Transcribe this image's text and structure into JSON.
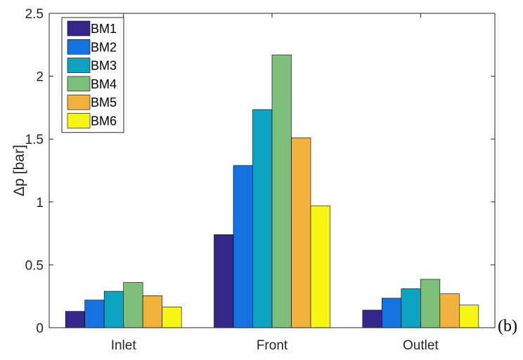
{
  "chart_data": {
    "type": "bar",
    "categories": [
      "Inlet",
      "Front",
      "Outlet"
    ],
    "series": [
      {
        "name": "BM1",
        "values": [
          0.13,
          0.74,
          0.14
        ],
        "color": "#33288a"
      },
      {
        "name": "BM2",
        "values": [
          0.22,
          1.29,
          0.235
        ],
        "color": "#1473e0"
      },
      {
        "name": "BM3",
        "values": [
          0.29,
          1.735,
          0.31
        ],
        "color": "#0fa3c2"
      },
      {
        "name": "BM4",
        "values": [
          0.36,
          2.17,
          0.385
        ],
        "color": "#7dbf7a"
      },
      {
        "name": "BM5",
        "values": [
          0.255,
          1.51,
          0.27
        ],
        "color": "#f2b23d"
      },
      {
        "name": "BM6",
        "values": [
          0.165,
          0.97,
          0.18
        ],
        "color": "#f7f514"
      }
    ],
    "title": "",
    "xlabel": "",
    "ylabel": "Δp [bar]",
    "ylim": [
      0,
      2.5
    ],
    "yticks": [
      "0",
      "0.5",
      "1",
      "1.5",
      "2",
      "2.5"
    ],
    "grid": false,
    "legend_position": "top-left"
  },
  "panel_label": "(b)"
}
